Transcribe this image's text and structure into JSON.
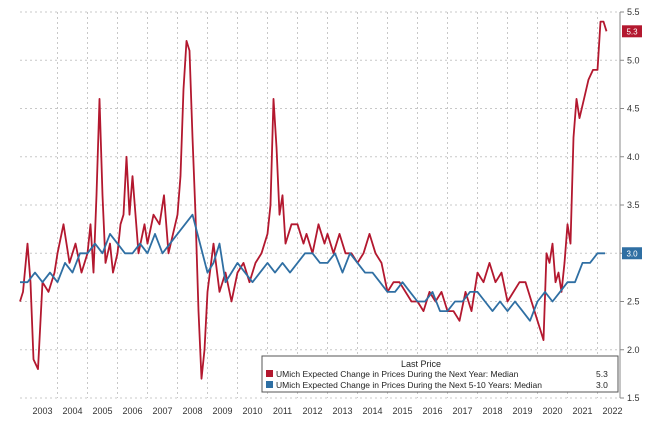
{
  "chart_data": {
    "type": "line",
    "title": "",
    "xlabel": "",
    "ylabel": "",
    "xlim": [
      2002.75,
      2022.75
    ],
    "ylim": [
      1.5,
      5.5
    ],
    "grid": true,
    "legend_placement": "bottom-right",
    "x_tick_labels": [
      "2003",
      "2004",
      "2005",
      "2006",
      "2007",
      "2008",
      "2009",
      "2010",
      "2011",
      "2012",
      "2013",
      "2014",
      "2015",
      "2016",
      "2017",
      "2018",
      "2019",
      "2020",
      "2021",
      "2022"
    ],
    "y_tick_labels": [
      "1.5",
      "2.0",
      "2.5",
      "3.0",
      "3.5",
      "4.0",
      "4.5",
      "5.0",
      "5.5"
    ],
    "legend_title": "Last Price",
    "series": [
      {
        "name": "UMich Expected Change in Prices During the Next Year: Median",
        "last": "5.3",
        "color": "#b3182f",
        "x": [
          2002.75,
          2002.85,
          2003.0,
          2003.1,
          2003.2,
          2003.35,
          2003.5,
          2003.7,
          2003.9,
          2004.0,
          2004.2,
          2004.4,
          2004.6,
          2004.8,
          2005.0,
          2005.1,
          2005.2,
          2005.3,
          2005.4,
          2005.5,
          2005.6,
          2005.75,
          2005.85,
          2006.0,
          2006.1,
          2006.2,
          2006.3,
          2006.4,
          2006.5,
          2006.7,
          2006.9,
          2007.0,
          2007.2,
          2007.4,
          2007.55,
          2007.7,
          2007.85,
          2008.0,
          2008.1,
          2008.2,
          2008.3,
          2008.4,
          2008.5,
          2008.6,
          2008.7,
          2008.8,
          2008.9,
          2009.0,
          2009.2,
          2009.4,
          2009.6,
          2009.8,
          2010.0,
          2010.2,
          2010.4,
          2010.6,
          2010.8,
          2011.0,
          2011.1,
          2011.2,
          2011.3,
          2011.4,
          2011.5,
          2011.6,
          2011.8,
          2012.0,
          2012.2,
          2012.3,
          2012.5,
          2012.7,
          2012.9,
          2013.0,
          2013.2,
          2013.4,
          2013.6,
          2013.8,
          2014.0,
          2014.2,
          2014.4,
          2014.6,
          2014.8,
          2015.0,
          2015.2,
          2015.4,
          2015.6,
          2015.8,
          2016.0,
          2016.2,
          2016.4,
          2016.6,
          2016.8,
          2017.0,
          2017.2,
          2017.4,
          2017.6,
          2017.8,
          2018.0,
          2018.2,
          2018.4,
          2018.6,
          2018.8,
          2019.0,
          2019.2,
          2019.4,
          2019.6,
          2019.8,
          2020.0,
          2020.1,
          2020.2,
          2020.3,
          2020.4,
          2020.5,
          2020.6,
          2020.7,
          2020.8,
          2020.9,
          2021.0,
          2021.1,
          2021.2,
          2021.3,
          2021.4,
          2021.55,
          2021.7,
          2021.85,
          2022.0,
          2022.1,
          2022.2,
          2022.3
        ],
        "y": [
          2.5,
          2.6,
          3.1,
          2.7,
          1.9,
          1.8,
          2.7,
          2.6,
          2.8,
          3.0,
          3.3,
          2.9,
          3.1,
          2.8,
          3.0,
          3.3,
          2.8,
          3.6,
          4.6,
          3.6,
          2.9,
          3.1,
          2.8,
          3.0,
          3.3,
          3.4,
          4.0,
          3.4,
          3.8,
          3.0,
          3.3,
          3.1,
          3.4,
          3.3,
          3.6,
          3.0,
          3.2,
          3.4,
          3.8,
          4.7,
          5.2,
          5.1,
          4.2,
          3.4,
          2.4,
          1.7,
          2.0,
          2.6,
          3.1,
          2.6,
          2.8,
          2.5,
          2.8,
          2.9,
          2.7,
          2.9,
          3.0,
          3.2,
          3.5,
          4.6,
          4.1,
          3.4,
          3.6,
          3.1,
          3.3,
          3.3,
          3.1,
          3.2,
          3.0,
          3.3,
          3.1,
          3.2,
          3.0,
          3.2,
          3.0,
          3.0,
          2.9,
          3.0,
          3.2,
          3.0,
          2.9,
          2.6,
          2.7,
          2.7,
          2.6,
          2.5,
          2.5,
          2.4,
          2.6,
          2.5,
          2.6,
          2.4,
          2.4,
          2.3,
          2.6,
          2.4,
          2.8,
          2.7,
          2.9,
          2.7,
          2.8,
          2.5,
          2.6,
          2.7,
          2.7,
          2.5,
          2.3,
          2.2,
          2.1,
          3.0,
          2.9,
          3.1,
          2.7,
          2.8,
          2.6,
          2.9,
          3.3,
          3.1,
          4.2,
          4.6,
          4.4,
          4.6,
          4.8,
          4.9,
          4.9,
          5.4,
          5.4,
          5.3
        ]
      },
      {
        "name": "UMich Expected Change in Prices During the Next 5-10 Years: Median",
        "last": "3.0",
        "color": "#2f6fa3",
        "x": [
          2002.75,
          2003.0,
          2003.25,
          2003.5,
          2003.75,
          2004.0,
          2004.25,
          2004.5,
          2004.75,
          2005.0,
          2005.25,
          2005.5,
          2005.75,
          2006.0,
          2006.25,
          2006.5,
          2006.75,
          2007.0,
          2007.25,
          2007.5,
          2007.75,
          2008.0,
          2008.25,
          2008.5,
          2008.75,
          2009.0,
          2009.2,
          2009.4,
          2009.6,
          2009.8,
          2010.0,
          2010.25,
          2010.5,
          2010.75,
          2011.0,
          2011.25,
          2011.5,
          2011.75,
          2012.0,
          2012.25,
          2012.5,
          2012.75,
          2013.0,
          2013.25,
          2013.5,
          2013.75,
          2014.0,
          2014.25,
          2014.5,
          2014.75,
          2015.0,
          2015.25,
          2015.5,
          2015.75,
          2016.0,
          2016.25,
          2016.5,
          2016.75,
          2017.0,
          2017.25,
          2017.5,
          2017.75,
          2018.0,
          2018.25,
          2018.5,
          2018.75,
          2019.0,
          2019.25,
          2019.5,
          2019.75,
          2020.0,
          2020.25,
          2020.5,
          2020.75,
          2021.0,
          2021.25,
          2021.5,
          2021.75,
          2022.0,
          2022.25
        ],
        "y": [
          2.7,
          2.7,
          2.8,
          2.7,
          2.8,
          2.7,
          2.9,
          2.8,
          3.0,
          3.0,
          3.1,
          3.0,
          3.2,
          3.1,
          3.0,
          3.0,
          3.1,
          3.0,
          3.2,
          3.0,
          3.1,
          3.2,
          3.3,
          3.4,
          3.1,
          2.8,
          2.9,
          3.1,
          2.7,
          2.8,
          2.9,
          2.8,
          2.7,
          2.8,
          2.9,
          2.8,
          2.9,
          2.8,
          2.9,
          3.0,
          3.0,
          2.9,
          2.9,
          3.0,
          2.8,
          3.0,
          2.9,
          2.8,
          2.8,
          2.7,
          2.6,
          2.6,
          2.7,
          2.6,
          2.5,
          2.5,
          2.6,
          2.4,
          2.4,
          2.5,
          2.5,
          2.6,
          2.6,
          2.5,
          2.4,
          2.5,
          2.4,
          2.5,
          2.4,
          2.3,
          2.5,
          2.6,
          2.5,
          2.6,
          2.7,
          2.7,
          2.9,
          2.9,
          3.0,
          3.0
        ]
      }
    ]
  }
}
